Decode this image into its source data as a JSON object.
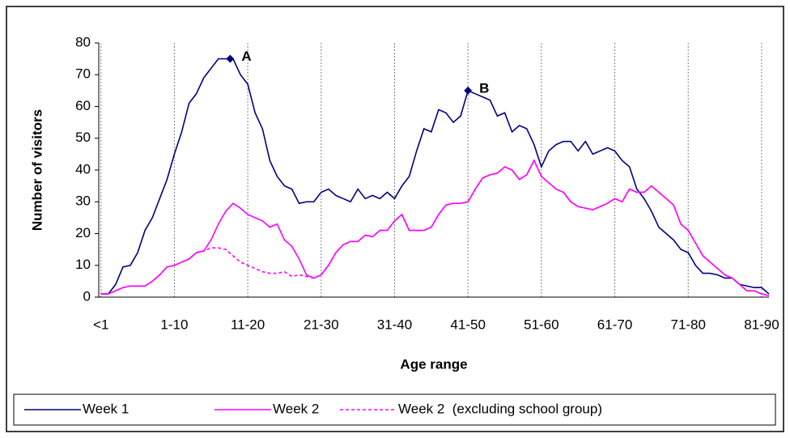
{
  "chart_data": {
    "type": "line",
    "xlabel": "Age range",
    "ylabel": "Number of visitors",
    "x": [
      0,
      1,
      2,
      3,
      4,
      5,
      6,
      7,
      8,
      9,
      10,
      11,
      12,
      13,
      14,
      15,
      16,
      17,
      18,
      19,
      20,
      21,
      22,
      23,
      24,
      25,
      26,
      27,
      28,
      29,
      30,
      31,
      32,
      33,
      34,
      35,
      36,
      37,
      38,
      39,
      40,
      41,
      42,
      43,
      44,
      45,
      46,
      47,
      48,
      49,
      50,
      51,
      52,
      53,
      54,
      55,
      56,
      57,
      58,
      59,
      60,
      61,
      62,
      63,
      64,
      65,
      66,
      67,
      68,
      69,
      70,
      71,
      72,
      73,
      74,
      75,
      76,
      77,
      78,
      79,
      80,
      81,
      82,
      83,
      84,
      85,
      86,
      87,
      88,
      89,
      90,
      91
    ],
    "series": [
      {
        "name": "Week 1",
        "color": "#000080",
        "dash": false,
        "values": [
          1,
          1,
          4,
          9.5,
          10,
          14,
          21,
          25,
          31,
          37,
          45,
          52,
          61,
          64,
          69,
          72,
          75,
          75,
          75,
          70,
          67,
          58,
          53,
          43,
          38,
          35,
          34,
          29.5,
          30,
          30,
          33,
          34,
          32,
          31,
          30,
          34,
          31,
          32,
          31,
          33,
          31,
          35,
          38,
          46,
          53,
          52,
          59,
          58,
          55,
          57,
          65,
          64,
          63,
          62,
          57,
          58,
          52,
          54,
          53,
          48,
          41,
          46,
          48,
          49,
          49,
          46,
          49,
          45,
          46,
          47,
          46,
          43,
          41,
          34,
          31,
          27,
          22,
          20,
          18,
          15,
          14,
          10,
          7.5,
          7.5,
          7,
          6,
          6,
          4,
          3.5,
          3,
          3,
          1
        ]
      },
      {
        "name": "Week 2",
        "color": "#ff00ff",
        "dash": false,
        "values": [
          1,
          1,
          2,
          3,
          3.5,
          3.5,
          3.5,
          5,
          7,
          9.5,
          10,
          11,
          12,
          14,
          14.5,
          18,
          23,
          27,
          29.5,
          28,
          26,
          25,
          24,
          22,
          23,
          18,
          16,
          12,
          7,
          6,
          7,
          10,
          14,
          16.5,
          17.5,
          17.5,
          19.5,
          19,
          21,
          21,
          24,
          26,
          21,
          21,
          21,
          22,
          26,
          29,
          29.5,
          29.5,
          30,
          34,
          37.5,
          38.5,
          39,
          41,
          40,
          37,
          38.5,
          43,
          38,
          36,
          34,
          33,
          30,
          28.5,
          28,
          27.5,
          28.5,
          29.5,
          31,
          30,
          34,
          33,
          33,
          35,
          33,
          31,
          29,
          23,
          21,
          17,
          13,
          11,
          9,
          7,
          6,
          4,
          2,
          2,
          1,
          0.5
        ]
      },
      {
        "name": "Week 2  (excluding school group)",
        "color": "#ff00ff",
        "dash": true,
        "values": [
          1,
          1,
          2,
          3,
          3.5,
          3.5,
          3.5,
          5,
          7,
          9.5,
          10,
          11,
          12,
          14,
          14.5,
          15.5,
          15.5,
          15,
          13,
          11,
          10,
          9,
          8,
          7.5,
          7.5,
          8,
          6.5,
          7,
          6.5,
          6,
          7,
          10,
          14,
          16.5,
          17.5,
          17.5,
          19.5,
          19,
          21,
          21,
          24,
          26,
          21,
          21,
          21,
          22,
          26,
          29,
          29.5,
          29.5,
          30,
          34,
          37.5,
          38.5,
          39,
          41,
          40,
          37,
          38.5,
          43,
          38,
          36,
          34,
          33,
          30,
          28.5,
          28,
          27.5,
          28.5,
          29.5,
          31,
          30,
          34,
          33,
          33,
          35,
          33,
          31,
          29,
          23,
          21,
          17,
          13,
          11,
          9,
          7,
          6,
          4,
          2,
          2,
          1,
          0.5
        ]
      }
    ],
    "annotations": [
      {
        "text": "A",
        "x": 17.6,
        "y": 75
      },
      {
        "text": "B",
        "x": 50,
        "y": 65
      }
    ],
    "xlim": [
      -0.3,
      91
    ],
    "xticks": [
      {
        "value": 0,
        "label": "<1"
      },
      {
        "value": 10,
        "label": "1-10"
      },
      {
        "value": 20,
        "label": "11-20"
      },
      {
        "value": 30,
        "label": "21-30"
      },
      {
        "value": 40,
        "label": "31-40"
      },
      {
        "value": 50,
        "label": "41-50"
      },
      {
        "value": 60,
        "label": "51-60"
      },
      {
        "value": 70,
        "label": "61-70"
      },
      {
        "value": 80,
        "label": "71-80"
      },
      {
        "value": 90,
        "label": "81-90"
      }
    ],
    "ylim": [
      0,
      80
    ],
    "yticks": [
      0,
      10,
      20,
      30,
      40,
      50,
      60,
      70,
      80
    ],
    "grid": "x",
    "legend": "bottom"
  }
}
